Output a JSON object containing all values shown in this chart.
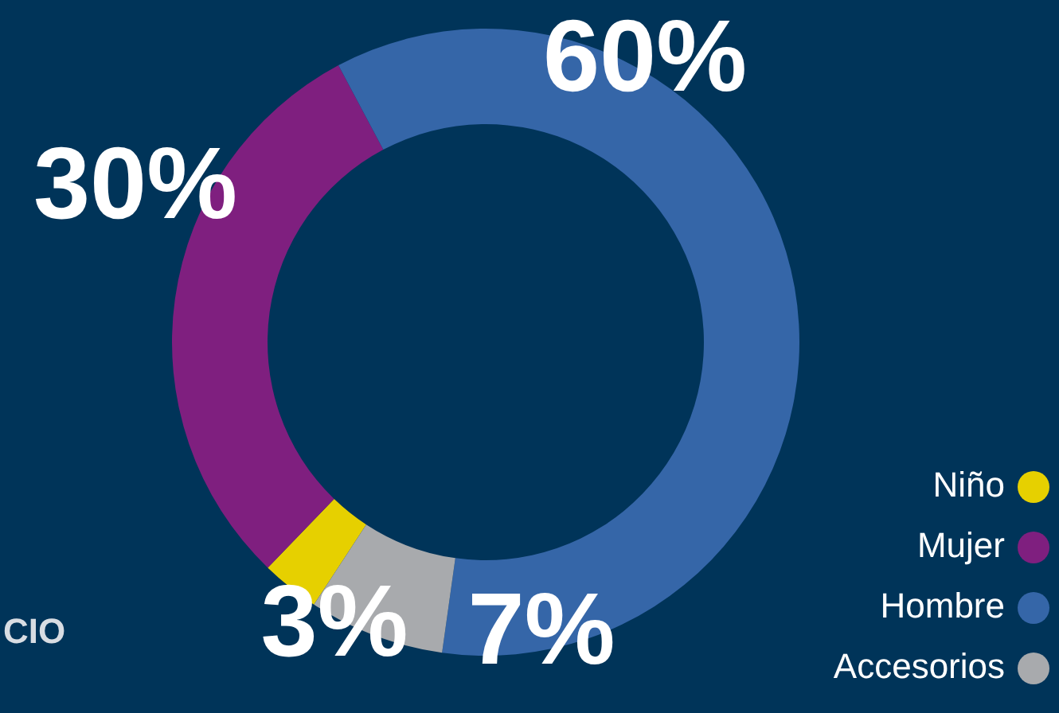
{
  "chart_data": {
    "type": "donut",
    "categories": [
      "Niño",
      "Mujer",
      "Hombre",
      "Accesorios"
    ],
    "values": [
      3,
      30,
      60,
      7
    ],
    "colors": [
      "#e6d000",
      "#7f1f7f",
      "#3566a8",
      "#a8aaad"
    ],
    "value_labels": [
      "3%",
      "30%",
      "60%",
      "7%"
    ],
    "legend": "bottom right",
    "annotations": [
      "CIO"
    ]
  }
}
